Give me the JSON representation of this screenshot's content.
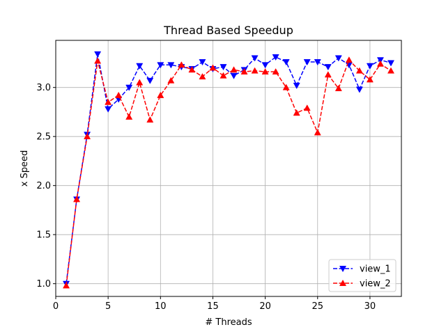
{
  "chart_data": {
    "type": "line",
    "title": "Thread Based Speedup",
    "xlabel": "# Threads",
    "ylabel": "x Speed",
    "xlim": [
      0,
      33
    ],
    "ylim": [
      0.87,
      3.48
    ],
    "xticks": [
      0,
      5,
      10,
      15,
      20,
      25,
      30
    ],
    "yticks": [
      1.0,
      1.5,
      2.0,
      2.5,
      3.0
    ],
    "ytick_labels": [
      "1.0",
      "1.5",
      "2.0",
      "2.5",
      "3.0"
    ],
    "grid": true,
    "legend_position": "bottom-right",
    "x": [
      1,
      2,
      3,
      4,
      5,
      6,
      7,
      8,
      9,
      10,
      11,
      12,
      13,
      14,
      15,
      16,
      17,
      18,
      19,
      20,
      21,
      22,
      23,
      24,
      25,
      26,
      27,
      28,
      29,
      30,
      31,
      32
    ],
    "series": [
      {
        "name": "view_1",
        "color": "#0000ff",
        "linestyle": "dashed",
        "marker": "triangle-down",
        "values": [
          1.0,
          1.86,
          2.52,
          3.34,
          2.78,
          2.88,
          3.0,
          3.22,
          3.07,
          3.23,
          3.23,
          3.21,
          3.19,
          3.26,
          3.19,
          3.21,
          3.12,
          3.18,
          3.3,
          3.23,
          3.31,
          3.26,
          3.02,
          3.26,
          3.26,
          3.21,
          3.3,
          3.23,
          2.98,
          3.22,
          3.28,
          3.25
        ]
      },
      {
        "name": "view_2",
        "color": "#ff0000",
        "linestyle": "dashed",
        "marker": "triangle-up",
        "values": [
          0.98,
          1.86,
          2.5,
          3.27,
          2.85,
          2.92,
          2.7,
          3.05,
          2.67,
          2.92,
          3.07,
          3.23,
          3.18,
          3.11,
          3.2,
          3.12,
          3.18,
          3.16,
          3.17,
          3.16,
          3.16,
          3.0,
          2.74,
          2.79,
          2.54,
          3.13,
          2.99,
          3.28,
          3.17,
          3.08,
          3.24,
          3.17
        ]
      }
    ]
  }
}
